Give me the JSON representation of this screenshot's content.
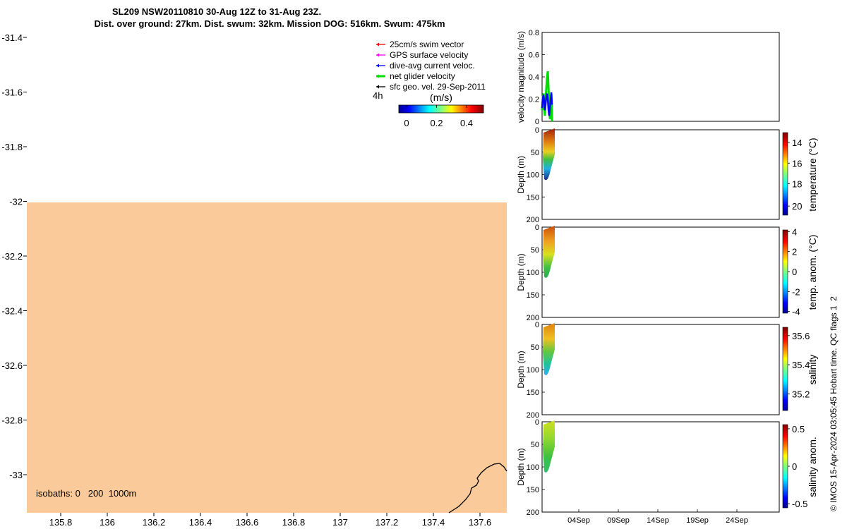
{
  "header": {
    "title_line1": "SL209 NSW20110810 30-Aug 12Z to 31-Aug 23Z.",
    "title_line2": "Dist. over ground: 27km. Dist. swum: 32km. Mission DOG: 516km. Swum: 475km"
  },
  "map": {
    "x_ticks": [
      "135.8",
      "136",
      "136.2",
      "136.4",
      "136.6",
      "136.8",
      "137",
      "137.2",
      "137.4",
      "137.6"
    ],
    "y_ticks": [
      "-31.4",
      "-31.6",
      "-31.8",
      "-32",
      "-32.2",
      "-32.4",
      "-32.6",
      "-32.8",
      "-33"
    ],
    "isobaths_label": "isobaths: 0   200  1000m",
    "time_step_label": "4h",
    "land_color": "#FACA9A",
    "legend": [
      {
        "label": "25cm/s swim vector",
        "color": "#ff0000"
      },
      {
        "label": "GPS surface velocity",
        "color": "#ff00ff"
      },
      {
        "label": "dive-avg current veloc.",
        "color": "#0000ff"
      },
      {
        "label": "net glider velocity",
        "color": "#00dd00"
      },
      {
        "label": "sfc geo. vel. 29-Sep-2011",
        "color": "#000000"
      }
    ],
    "colorbar": {
      "label": "(m/s)",
      "ticks": [
        "0",
        "0.2",
        "0.4"
      ]
    }
  },
  "chart_data": [
    {
      "type": "line",
      "ylabel": "velocity magnitude (m/s)",
      "y_ticks": [
        "0",
        "0.2",
        "0.4",
        "0.6",
        "0.8"
      ],
      "ylim": [
        0,
        0.8
      ],
      "x_range_days": [
        "30-Aug",
        "29-Sep"
      ],
      "series": [
        {
          "color": "#00dd00",
          "t": [
            0,
            0.1,
            0.2,
            0.3,
            0.4,
            0.5,
            0.6,
            0.7,
            0.8,
            0.9,
            1.0,
            1.1,
            1.2,
            1.3,
            1.4
          ],
          "values": [
            0.1,
            0.22,
            0.25,
            0.12,
            0.05,
            0.2,
            0.3,
            0.4,
            0.45,
            0.3,
            0.12,
            0.02,
            0.18,
            0.25,
            0.0
          ]
        },
        {
          "color": "#0000ff",
          "t": [
            0,
            0.1,
            0.2,
            0.3,
            0.4,
            0.5,
            0.6,
            0.7,
            0.8,
            0.9,
            1.0,
            1.1,
            1.2,
            1.3,
            1.4
          ],
          "values": [
            0.12,
            0.2,
            0.24,
            0.18,
            0.1,
            0.15,
            0.22,
            0.25,
            0.2,
            0.1,
            0.05,
            0.12,
            0.2,
            0.26,
            0.15
          ]
        }
      ]
    },
    {
      "type": "heatmap",
      "ylabel": "Depth (m)",
      "y_ticks": [
        "0",
        "50",
        "100",
        "150",
        "200"
      ],
      "ylim": [
        0,
        200
      ],
      "colorbar_label": "temperature (°C)",
      "colorbar_ticks": [
        "14",
        "16",
        "18",
        "20"
      ]
    },
    {
      "type": "heatmap",
      "ylabel": "Depth (m)",
      "y_ticks": [
        "0",
        "50",
        "100",
        "150",
        "200"
      ],
      "ylim": [
        0,
        200
      ],
      "colorbar_label": "temp. anom. (°C)",
      "colorbar_ticks": [
        "4",
        "2",
        "0",
        "-2",
        "-4"
      ]
    },
    {
      "type": "heatmap",
      "ylabel": "Depth (m)",
      "y_ticks": [
        "0",
        "50",
        "100",
        "150",
        "200"
      ],
      "ylim": [
        0,
        200
      ],
      "colorbar_label": "salinity",
      "colorbar_ticks": [
        "35.6",
        "35.4",
        "35.2"
      ]
    },
    {
      "type": "heatmap",
      "ylabel": "Depth (m)",
      "y_ticks": [
        "0",
        "50",
        "100",
        "150",
        "200"
      ],
      "ylim": [
        0,
        200
      ],
      "colorbar_label": "salinity anom.",
      "colorbar_ticks": [
        "0.5",
        "0",
        "-0.5"
      ],
      "x_ticks": [
        "04Sep",
        "09Sep",
        "14Sep",
        "19Sep",
        "24Sep"
      ]
    }
  ],
  "footer": {
    "credit": "© IMOS 15-Apr-2024 03:05:45 Hobart time. QC flags 1  2"
  }
}
